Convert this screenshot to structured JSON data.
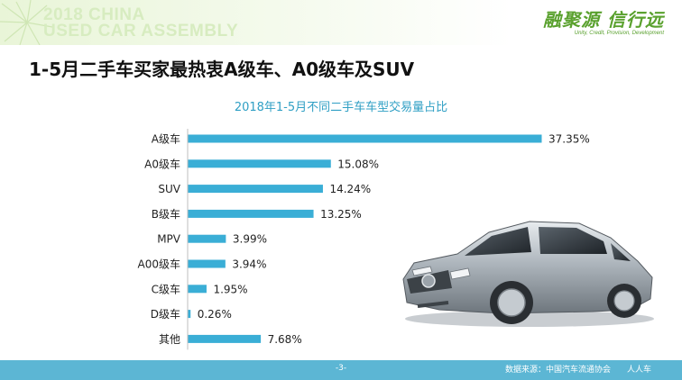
{
  "header": {
    "watermark_line1": "2018 CHINA",
    "watermark_line2": "USED CAR ASSEMBLY",
    "logo_text": "融聚源 信行远",
    "logo_slogan": "Unity, Credit, Provision, Development"
  },
  "page_title": "1-5月二手车买家最热衷A级车、A0级车及SUV",
  "footer": {
    "page_number": "-3-",
    "source": "数据来源：中国汽车流通协会",
    "source_partner": "人人车"
  },
  "colors": {
    "bar": "#3aaed6",
    "title": "#2f9fc4",
    "footer": "#5cb6d4",
    "logo": "#5aa12e"
  },
  "chart_data": {
    "type": "bar",
    "orientation": "horizontal",
    "title": "2018年1-5月不同二手车车型交易量占比",
    "categories": [
      "A级车",
      "A0级车",
      "SUV",
      "B级车",
      "MPV",
      "A00级车",
      "C级车",
      "D级车",
      "其他"
    ],
    "values": [
      37.35,
      15.08,
      14.24,
      13.25,
      3.99,
      3.94,
      1.95,
      0.26,
      7.68
    ],
    "value_labels": [
      "37.35%",
      "15.08%",
      "14.24%",
      "13.25%",
      "3.99%",
      "3.94%",
      "1.95%",
      "0.26%",
      "7.68%"
    ],
    "unit": "%",
    "xlim": [
      0,
      37.35
    ],
    "grid": false,
    "legend": "none"
  }
}
